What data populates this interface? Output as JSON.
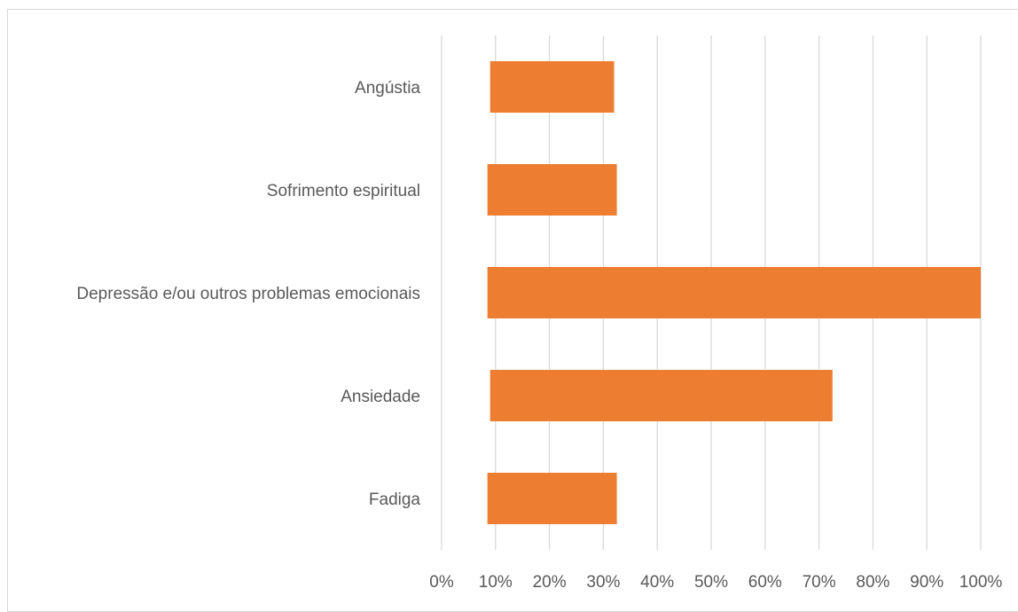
{
  "chart_data": {
    "type": "bar",
    "orientation": "horizontal",
    "categories": [
      "Angústia",
      "Sofrimento espiritual",
      "Depressão e/ou outros problemas emocionais",
      "Ansiedade",
      "Fadiga"
    ],
    "series": [
      {
        "ranges": [
          [
            9,
            32
          ],
          [
            8.5,
            32.5
          ],
          [
            8.5,
            100
          ],
          [
            9,
            72.5
          ],
          [
            8.5,
            32.5
          ]
        ],
        "color": "#ed7d31"
      }
    ],
    "xaxis": {
      "range": [
        0,
        100
      ],
      "ticks": [
        0,
        10,
        20,
        30,
        40,
        50,
        60,
        70,
        80,
        90,
        100
      ],
      "tick_labels": [
        "0%",
        "10%",
        "20%",
        "30%",
        "40%",
        "50%",
        "60%",
        "70%",
        "80%",
        "90%",
        "100%"
      ]
    },
    "grid": true,
    "legend": "none",
    "title": "",
    "xlabel": "",
    "ylabel": ""
  }
}
